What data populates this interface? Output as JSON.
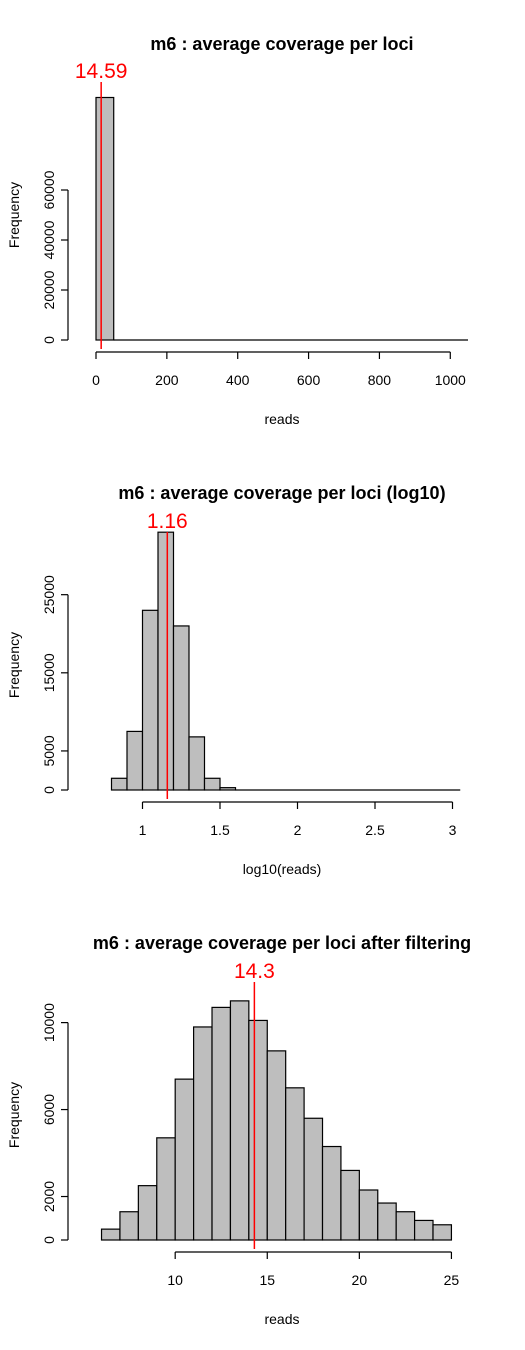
{
  "chart_data": [
    {
      "type": "histogram",
      "title": "m6 : average coverage per loci",
      "xlabel": "reads",
      "ylabel": "Frequency",
      "xlim": [
        0,
        1050
      ],
      "ylim": [
        0,
        100000
      ],
      "x_ticks": [
        0,
        200,
        400,
        600,
        800,
        1000
      ],
      "y_ticks": [
        0,
        20000,
        40000,
        60000
      ],
      "bins": [
        {
          "x0": 0,
          "x1": 50,
          "count": 97000
        },
        {
          "x0": 50,
          "x1": 1050,
          "count": 0
        }
      ],
      "marker": {
        "value": 14.59,
        "label": "14.59",
        "color": "#ff0000"
      },
      "bar_color": "#bebebe"
    },
    {
      "type": "histogram",
      "title": "m6 : average coverage per loci (log10)",
      "xlabel": "log10(reads)",
      "ylabel": "Frequency",
      "xlim": [
        0.7,
        3.1
      ],
      "ylim": [
        0,
        32000
      ],
      "x_ticks": [
        1.0,
        1.5,
        2.0,
        2.5,
        3.0
      ],
      "y_ticks": [
        0,
        5000,
        15000,
        25000
      ],
      "bins": [
        {
          "x0": 0.8,
          "x1": 0.9,
          "count": 1500
        },
        {
          "x0": 0.9,
          "x1": 1.0,
          "count": 7500
        },
        {
          "x0": 1.0,
          "x1": 1.1,
          "count": 23000
        },
        {
          "x0": 1.1,
          "x1": 1.2,
          "count": 33000
        },
        {
          "x0": 1.2,
          "x1": 1.3,
          "count": 21000
        },
        {
          "x0": 1.3,
          "x1": 1.4,
          "count": 6800
        },
        {
          "x0": 1.4,
          "x1": 1.5,
          "count": 1500
        },
        {
          "x0": 1.5,
          "x1": 1.6,
          "count": 300
        },
        {
          "x0": 1.6,
          "x1": 3.05,
          "count": 0
        }
      ],
      "marker": {
        "value": 1.16,
        "label": "1.16",
        "color": "#ff0000"
      },
      "bar_color": "#bebebe"
    },
    {
      "type": "histogram",
      "title": "m6 : average coverage per loci after filtering",
      "xlabel": "reads",
      "ylabel": "Frequency",
      "xlim": [
        5.7,
        25.9
      ],
      "ylim": [
        0,
        11500
      ],
      "x_ticks": [
        10,
        15,
        20,
        25
      ],
      "y_ticks": [
        0,
        2000,
        6000,
        10000
      ],
      "bins": [
        {
          "x0": 6,
          "x1": 7,
          "count": 500
        },
        {
          "x0": 7,
          "x1": 8,
          "count": 1300
        },
        {
          "x0": 8,
          "x1": 9,
          "count": 2500
        },
        {
          "x0": 9,
          "x1": 10,
          "count": 4700
        },
        {
          "x0": 10,
          "x1": 11,
          "count": 7400
        },
        {
          "x0": 11,
          "x1": 12,
          "count": 9800
        },
        {
          "x0": 12,
          "x1": 13,
          "count": 10700
        },
        {
          "x0": 13,
          "x1": 14,
          "count": 11000
        },
        {
          "x0": 14,
          "x1": 15,
          "count": 10100
        },
        {
          "x0": 15,
          "x1": 16,
          "count": 8700
        },
        {
          "x0": 16,
          "x1": 17,
          "count": 7000
        },
        {
          "x0": 17,
          "x1": 18,
          "count": 5600
        },
        {
          "x0": 18,
          "x1": 19,
          "count": 4300
        },
        {
          "x0": 19,
          "x1": 20,
          "count": 3200
        },
        {
          "x0": 20,
          "x1": 21,
          "count": 2300
        },
        {
          "x0": 21,
          "x1": 22,
          "count": 1700
        },
        {
          "x0": 22,
          "x1": 23,
          "count": 1300
        },
        {
          "x0": 23,
          "x1": 24,
          "count": 900
        },
        {
          "x0": 24,
          "x1": 25,
          "count": 700
        }
      ],
      "marker": {
        "value": 14.3,
        "label": "14.3",
        "color": "#ff0000"
      },
      "bar_color": "#bebebe"
    }
  ]
}
